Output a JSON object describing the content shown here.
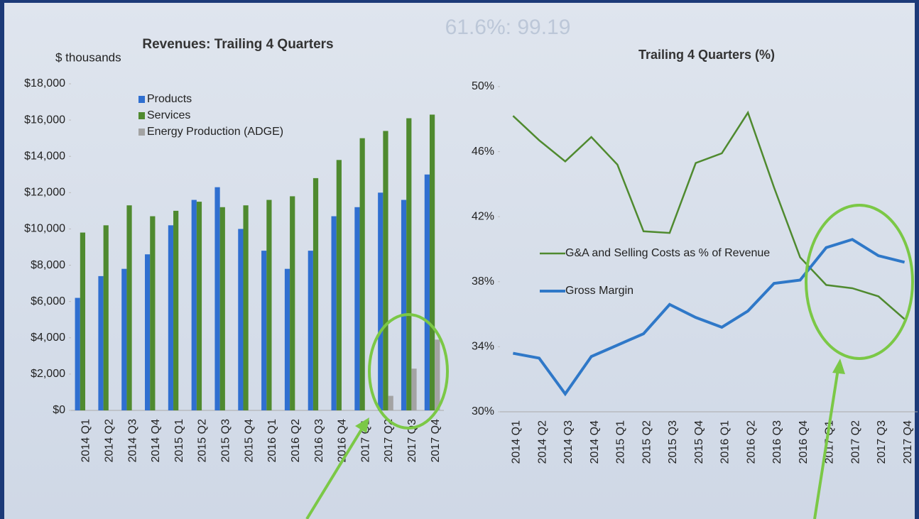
{
  "background_text": "61.6%: 99.19",
  "chart_data": [
    {
      "type": "bar",
      "title": "Revenues: Trailing 4 Quarters",
      "y_label": "$ thousands",
      "categories": [
        "2014 Q1",
        "2014 Q2",
        "2014 Q3",
        "2014 Q4",
        "2015 Q1",
        "2015 Q2",
        "2015 Q3",
        "2015 Q4",
        "2016 Q1",
        "2016 Q2",
        "2016 Q3",
        "2016 Q4",
        "2017 Q1",
        "2017 Q2",
        "2017 Q3",
        "2017 Q4"
      ],
      "series": [
        {
          "name": "Products",
          "color": "#2f6fd0",
          "values": [
            6200,
            7400,
            7800,
            8600,
            10200,
            11600,
            12300,
            10000,
            8800,
            7800,
            8800,
            10700,
            11200,
            12000,
            11600,
            13000
          ]
        },
        {
          "name": "Services",
          "color": "#4f8a2f",
          "values": [
            9800,
            10200,
            11300,
            10700,
            11000,
            11500,
            11200,
            11300,
            11600,
            11800,
            12800,
            13800,
            15000,
            15400,
            16100,
            16300
          ]
        },
        {
          "name": "Energy Production (ADGE)",
          "color": "#a3a3a3",
          "values": [
            null,
            null,
            null,
            null,
            null,
            null,
            null,
            null,
            null,
            null,
            null,
            null,
            null,
            800,
            2300,
            3900
          ]
        }
      ],
      "ylim": [
        0,
        18000
      ],
      "yticks": [
        {
          "value": 0,
          "label": "$0"
        },
        {
          "value": 2000,
          "label": "$2,000"
        },
        {
          "value": 4000,
          "label": "$4,000"
        },
        {
          "value": 6000,
          "label": "$6,000"
        },
        {
          "value": 8000,
          "label": "$8,000"
        },
        {
          "value": 10000,
          "label": "$10,000"
        },
        {
          "value": 12000,
          "label": "$12,000"
        },
        {
          "value": 14000,
          "label": "$14,000"
        },
        {
          "value": 16000,
          "label": "$16,000"
        },
        {
          "value": 18000,
          "label": "$18,000"
        }
      ],
      "legend": "top-left"
    },
    {
      "type": "line",
      "title": "Trailing 4 Quarters (%)",
      "categories": [
        "2014 Q1",
        "2014 Q2",
        "2014 Q3",
        "2014 Q4",
        "2015 Q1",
        "2015 Q2",
        "2015 Q3",
        "2015 Q4",
        "2016 Q1",
        "2016 Q2",
        "2016 Q3",
        "2016 Q4",
        "2017 Q1",
        "2017 Q2",
        "2017 Q3",
        "2017 Q4"
      ],
      "series": [
        {
          "name": "G&A and Selling Costs as % of Revenue",
          "color": "#4f8a2f",
          "values": [
            48.2,
            46.7,
            45.4,
            46.9,
            45.2,
            41.1,
            41.0,
            45.3,
            45.9,
            48.4,
            43.8,
            39.5,
            37.8,
            37.6,
            37.1,
            35.7
          ]
        },
        {
          "name": "Gross Margin",
          "color": "#2f78c8",
          "values": [
            33.6,
            33.3,
            31.1,
            33.4,
            34.1,
            34.8,
            36.6,
            35.8,
            35.2,
            36.2,
            37.9,
            38.1,
            40.1,
            40.6,
            39.6,
            39.2
          ]
        }
      ],
      "ylim": [
        30,
        50
      ],
      "yticks": [
        {
          "value": 30,
          "label": "30%"
        },
        {
          "value": 34,
          "label": "34%"
        },
        {
          "value": 38,
          "label": "38%"
        },
        {
          "value": 42,
          "label": "42%"
        },
        {
          "value": 46,
          "label": "46%"
        },
        {
          "value": 50,
          "label": "50%"
        }
      ],
      "legend": "center-left"
    }
  ]
}
